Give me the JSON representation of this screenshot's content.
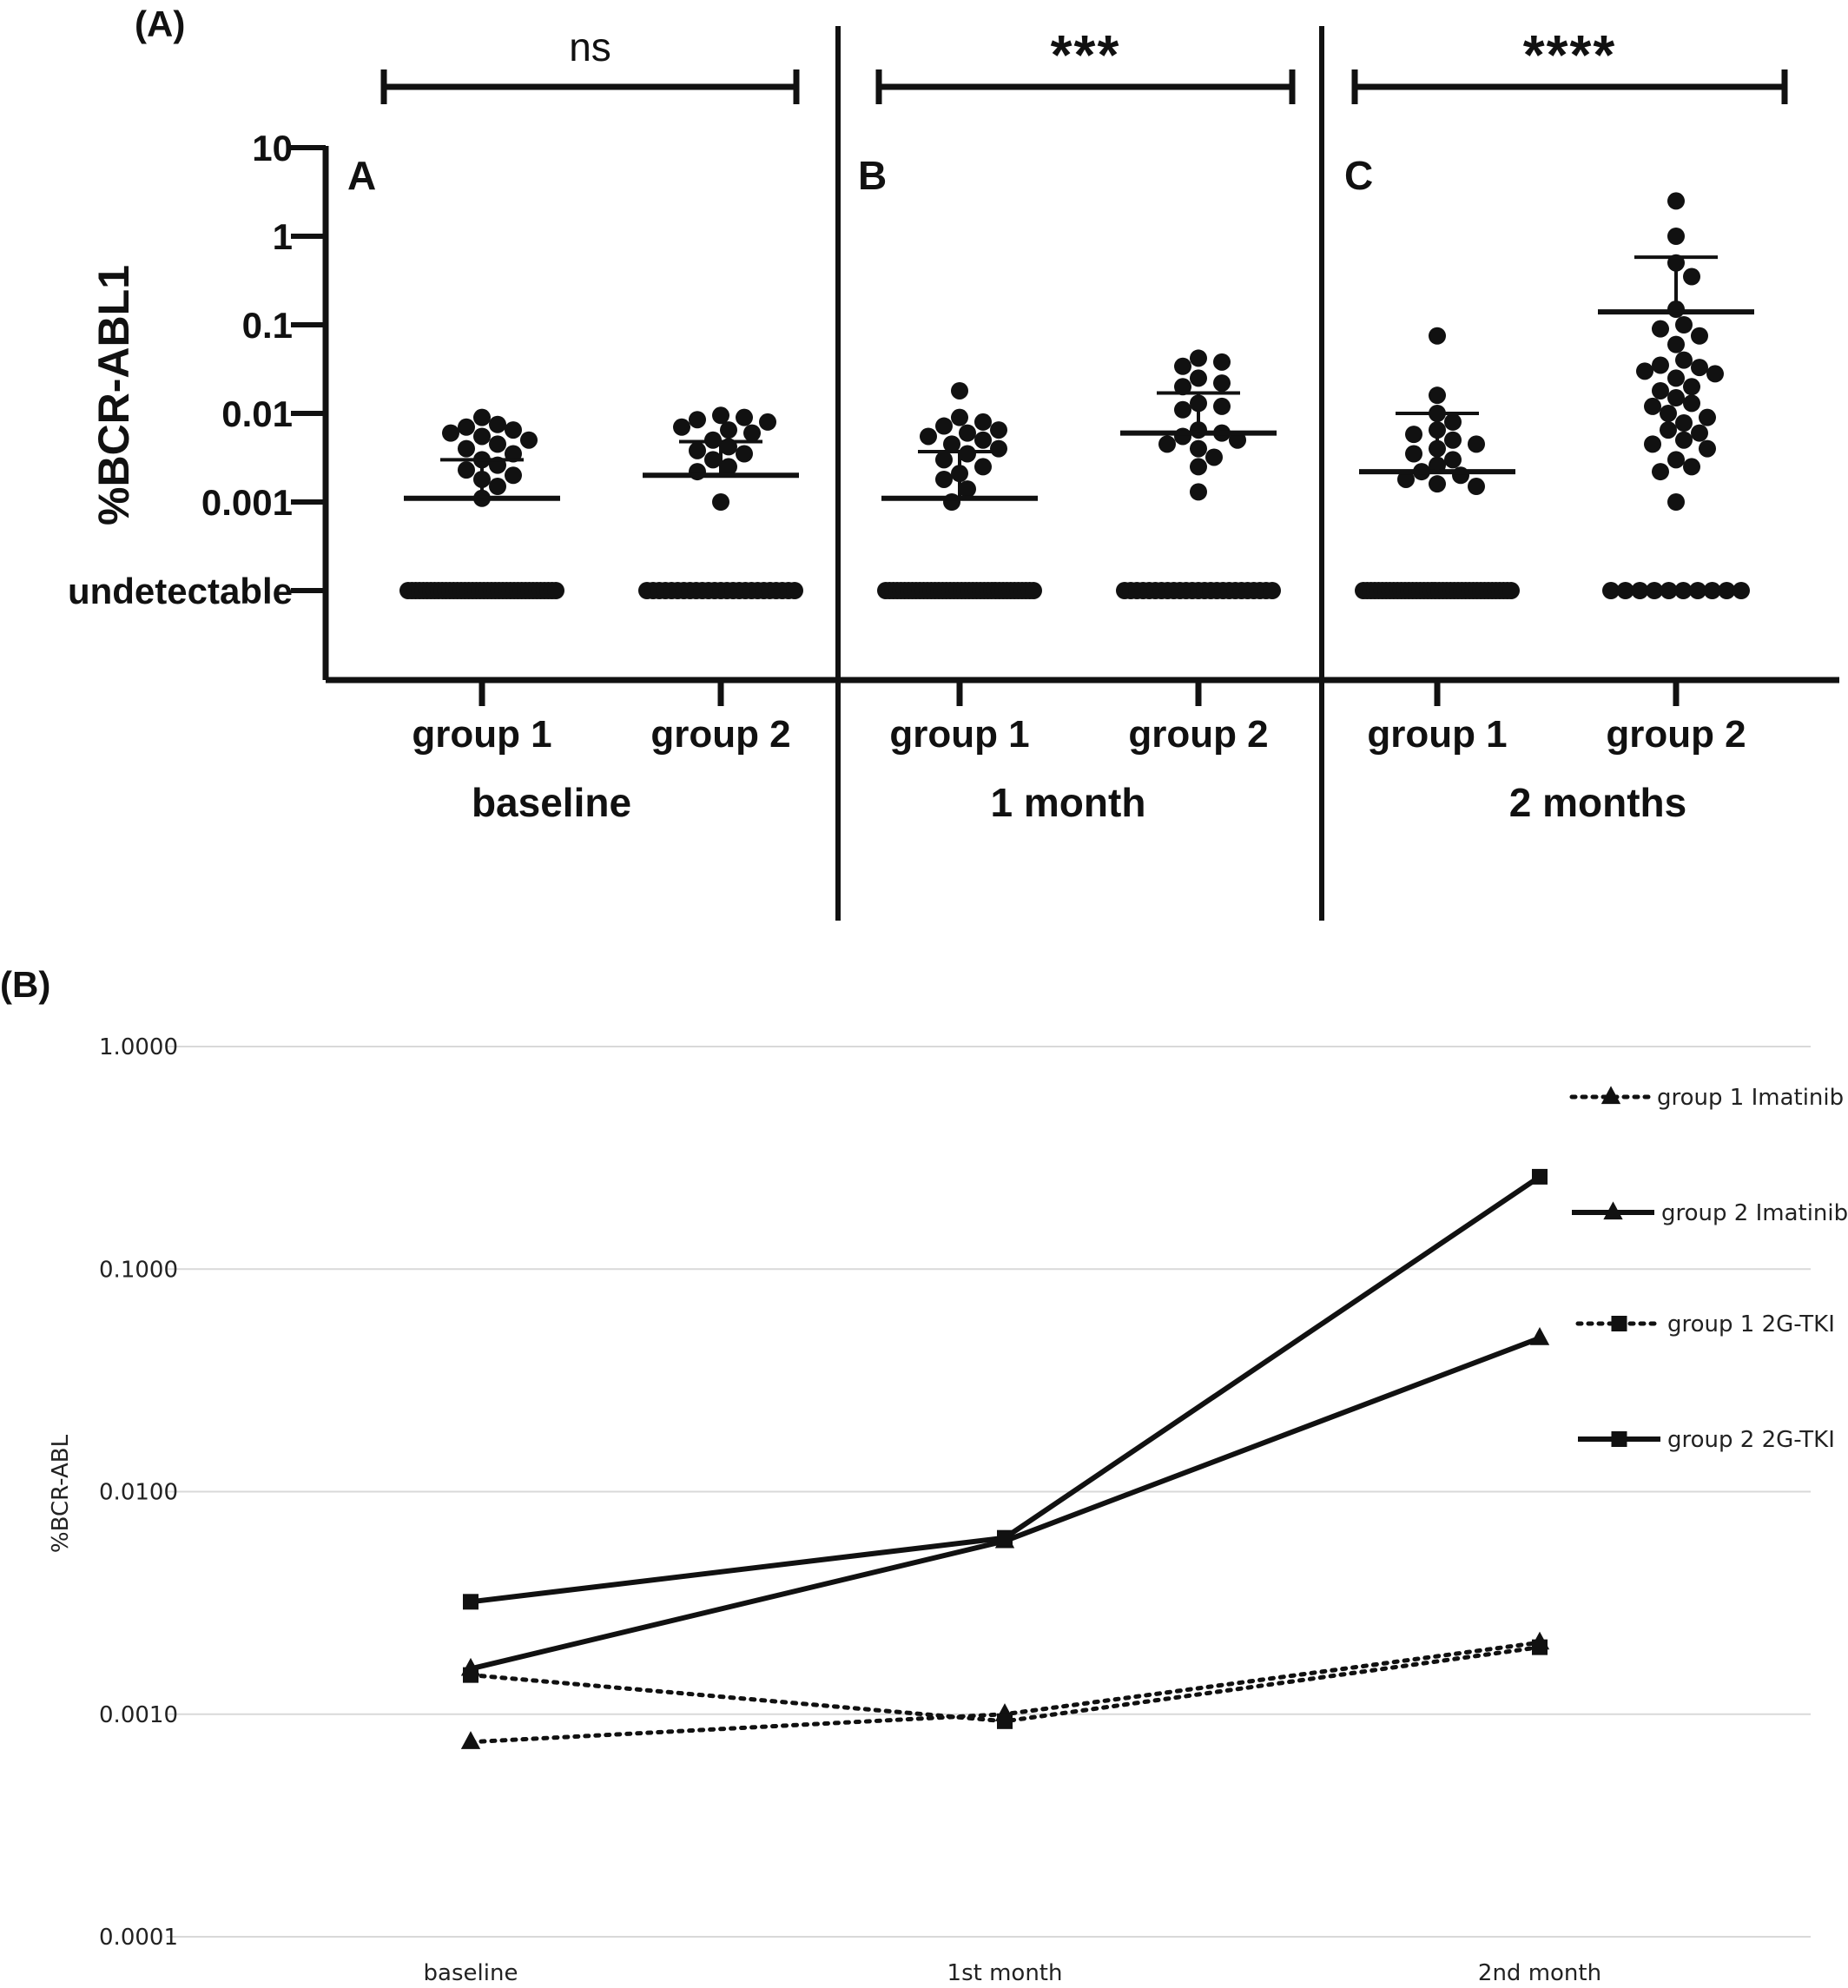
{
  "chart_data": [
    {
      "panel_label": "(A)",
      "type": "scatter",
      "ylabel": "%BCR-ABL1",
      "yscale": "log",
      "yticks": [
        "10",
        "1",
        "0.1",
        "0.01",
        "0.001",
        "undetectable"
      ],
      "ytick_values": [
        10,
        1,
        0.1,
        0.01,
        0.001,
        0.0001
      ],
      "subpanels": [
        {
          "letter": "A",
          "timepoint": "baseline",
          "significance": "ns",
          "groups": [
            {
              "name": "group 1",
              "mean": 0.0011,
              "sd_upper": 0.003,
              "points": [
                0.009,
                0.0075,
                0.007,
                0.0065,
                0.006,
                0.0055,
                0.005,
                0.0045,
                0.004,
                0.0035,
                0.003,
                0.0026,
                0.0023,
                0.002,
                0.0018,
                0.0015,
                0.0011
              ],
              "undetectable_count": 40
            },
            {
              "name": "group 2",
              "mean": 0.002,
              "sd_upper": 0.0048,
              "points": [
                0.0095,
                0.009,
                0.0085,
                0.008,
                0.007,
                0.0065,
                0.006,
                0.005,
                0.0042,
                0.0038,
                0.0035,
                0.003,
                0.0025,
                0.0022,
                0.001
              ],
              "undetectable_count": 25
            }
          ]
        },
        {
          "letter": "B",
          "timepoint": "1 month",
          "significance": "***",
          "groups": [
            {
              "name": "group 1",
              "mean": 0.0011,
              "sd_upper": 0.0037,
              "points": [
                0.018,
                0.009,
                0.008,
                0.0072,
                0.0065,
                0.006,
                0.0055,
                0.005,
                0.0045,
                0.004,
                0.0035,
                0.003,
                0.0025,
                0.0021,
                0.0018,
                0.0014,
                0.001
              ],
              "undetectable_count": 40
            },
            {
              "name": "group 2",
              "mean": 0.006,
              "sd_upper": 0.017,
              "points": [
                0.042,
                0.038,
                0.034,
                0.025,
                0.022,
                0.02,
                0.013,
                0.012,
                0.011,
                0.0065,
                0.006,
                0.0055,
                0.005,
                0.0045,
                0.004,
                0.0032,
                0.0025,
                0.0013
              ],
              "undetectable_count": 25
            }
          ]
        },
        {
          "letter": "C",
          "timepoint": "2 months",
          "significance": "****",
          "groups": [
            {
              "name": "group 1",
              "mean": 0.0022,
              "sd_upper": 0.01,
              "points": [
                0.075,
                0.016,
                0.01,
                0.008,
                0.0065,
                0.0058,
                0.005,
                0.0045,
                0.004,
                0.0035,
                0.003,
                0.0026,
                0.0022,
                0.002,
                0.0018,
                0.0016,
                0.0015
              ],
              "undetectable_count": 40
            },
            {
              "name": "group 2",
              "mean": 0.14,
              "sd_upper": 0.58,
              "points": [
                2.5,
                1.0,
                0.5,
                0.35,
                0.15,
                0.1,
                0.09,
                0.075,
                0.06,
                0.04,
                0.035,
                0.033,
                0.03,
                0.028,
                0.025,
                0.02,
                0.018,
                0.015,
                0.013,
                0.012,
                0.01,
                0.009,
                0.0078,
                0.0065,
                0.006,
                0.005,
                0.0045,
                0.004,
                0.003,
                0.0025,
                0.0022,
                0.001
              ],
              "undetectable_count": 10
            }
          ]
        }
      ]
    },
    {
      "panel_label": "(B)",
      "type": "line",
      "ylabel": "%BCR-ABL",
      "yscale": "log",
      "ylim": [
        0.0001,
        1
      ],
      "yticks": [
        "1.0000",
        "0.1000",
        "0.0100",
        "0.0010",
        "0.0001"
      ],
      "ytick_values": [
        1,
        0.1,
        0.01,
        0.001,
        0.0001
      ],
      "categories": [
        "baseline",
        "1st month",
        "2nd month"
      ],
      "grid": true,
      "legend_position": "right",
      "series": [
        {
          "name": "group 1 Imatinib",
          "values": [
            0.00075,
            0.001,
            0.0021
          ],
          "line": "dotted",
          "marker": "triangle"
        },
        {
          "name": "group 2 Imatinib",
          "values": [
            0.0016,
            0.006,
            0.049
          ],
          "line": "solid",
          "marker": "triangle"
        },
        {
          "name": "group 1 2G-TKI",
          "values": [
            0.0015,
            0.00093,
            0.002
          ],
          "line": "dotted",
          "marker": "square"
        },
        {
          "name": "group 2 2G-TKI",
          "values": [
            0.0032,
            0.0062,
            0.26
          ],
          "line": "solid",
          "marker": "square"
        }
      ]
    }
  ],
  "colors": {
    "ink": "#111111",
    "grid": "#d9d9d9",
    "background": "#ffffff"
  }
}
